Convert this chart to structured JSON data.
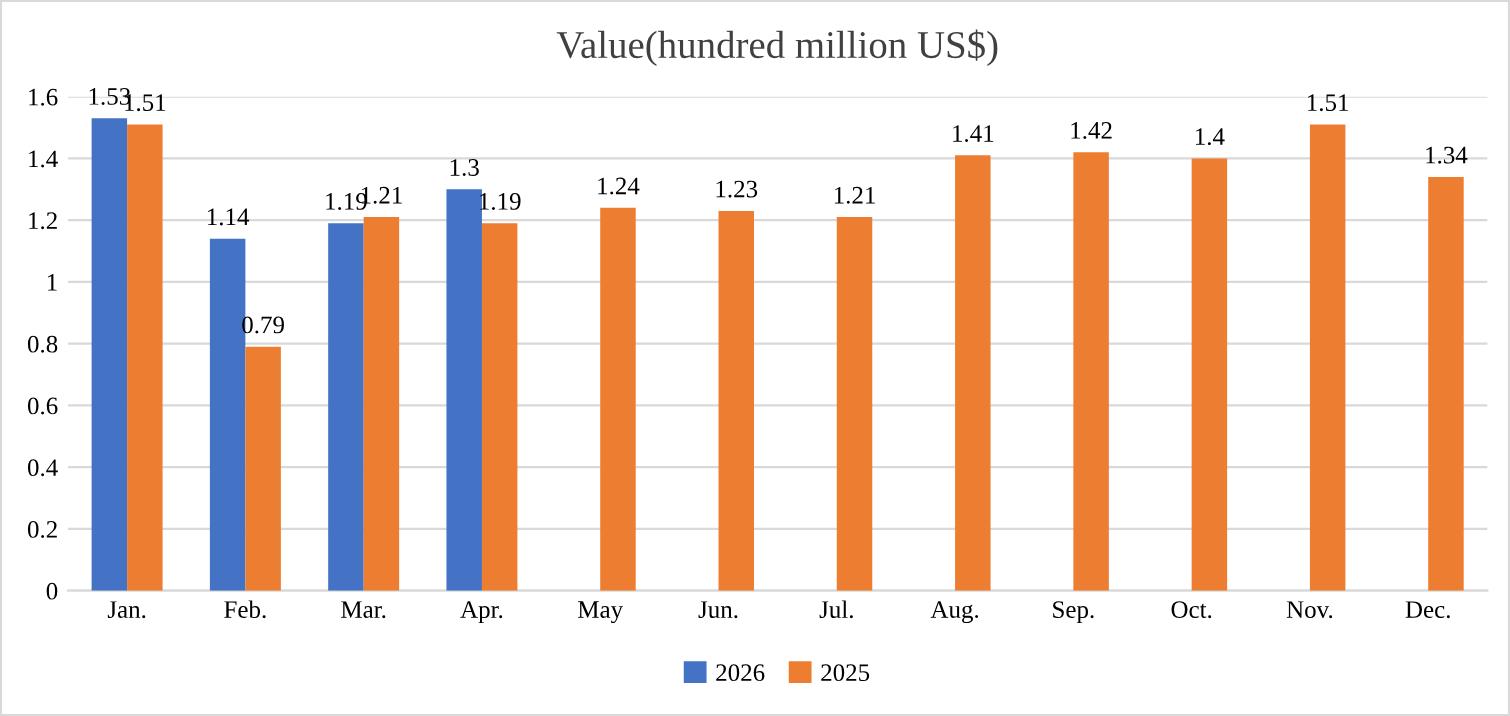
{
  "chart_data": {
    "type": "bar",
    "title": "Value(hundred million US$)",
    "categories": [
      "Jan.",
      "Feb.",
      "Mar.",
      "Apr.",
      "May",
      "Jun.",
      "Jul.",
      "Aug.",
      "Sep.",
      "Oct.",
      "Nov.",
      "Dec."
    ],
    "series": [
      {
        "name": "2026",
        "color": "#4472c4",
        "values": [
          1.53,
          1.14,
          1.19,
          1.3,
          null,
          null,
          null,
          null,
          null,
          null,
          null,
          null
        ]
      },
      {
        "name": "2025",
        "color": "#ed7d31",
        "values": [
          1.51,
          0.79,
          1.21,
          1.19,
          1.24,
          1.23,
          1.21,
          1.41,
          1.42,
          1.4,
          1.51,
          1.34
        ]
      }
    ],
    "ylim": [
      0,
      1.6
    ],
    "yticks": [
      0,
      0.2,
      0.4,
      0.6,
      0.8,
      1,
      1.2,
      1.4,
      1.6
    ],
    "grid": "y",
    "legend": "bottom",
    "data_labels": true
  }
}
